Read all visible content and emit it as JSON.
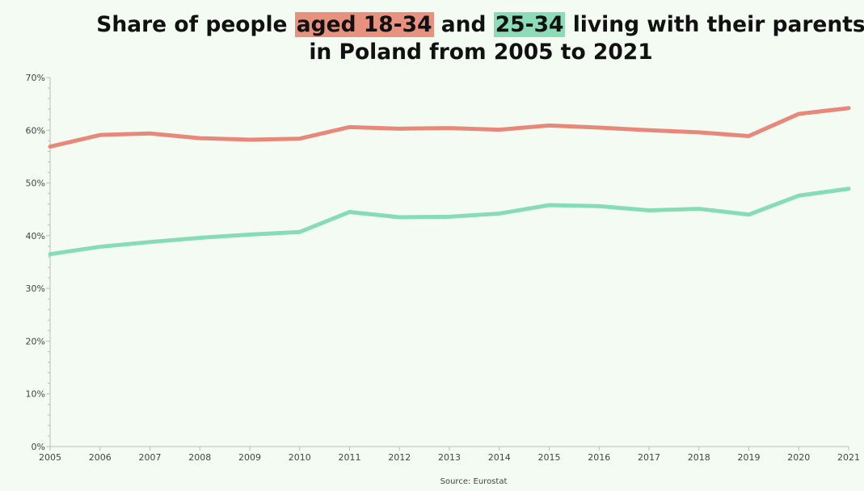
{
  "title": {
    "part1": "Share of people ",
    "highlight1": "aged 18-34",
    "part2": " and ",
    "highlight2": "25-34",
    "part3": " living with their parents",
    "line2": "in Poland from 2005 to 2021"
  },
  "source": "Source: Eurostat",
  "colors": {
    "background": "#f4fbf2",
    "series_18_34": "#e8887a",
    "series_25_34": "#86dcb4",
    "highlight_18_34": "#e8917e",
    "highlight_25_34": "#8ddcb8"
  },
  "chart_data": {
    "type": "line",
    "x": [
      "2005",
      "2006",
      "2007",
      "2008",
      "2009",
      "2010",
      "2011",
      "2012",
      "2013",
      "2014",
      "2015",
      "2016",
      "2017",
      "2018",
      "2019",
      "2020",
      "2021"
    ],
    "y_ticks": [
      "0%",
      "10%",
      "20%",
      "30%",
      "40%",
      "50%",
      "60%",
      "70%"
    ],
    "ylim": [
      0,
      70
    ],
    "grid": false,
    "series": [
      {
        "values": [
          56.9,
          59.1,
          59.4,
          58.5,
          58.2,
          58.4,
          60.6,
          60.3,
          60.4,
          60.1,
          60.9,
          60.5,
          60.0,
          59.6,
          58.9,
          63.1,
          64.2
        ]
      },
      {
        "values": [
          36.5,
          37.9,
          38.8,
          39.6,
          40.2,
          40.7,
          44.5,
          43.5,
          43.6,
          44.2,
          45.8,
          45.6,
          44.8,
          45.1,
          44.0,
          47.6,
          48.9
        ]
      }
    ]
  }
}
